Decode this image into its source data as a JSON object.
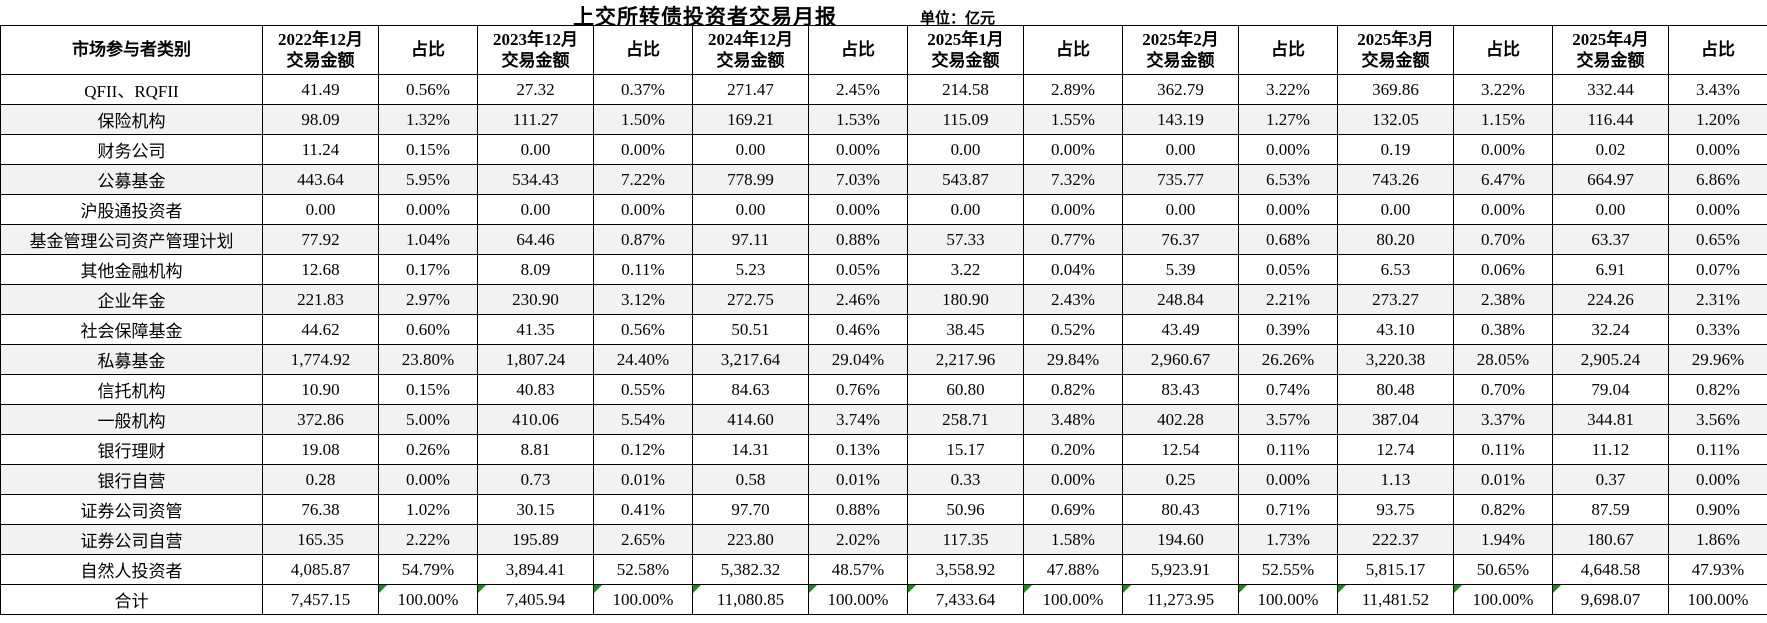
{
  "title": "上交所转债投资者交易月报",
  "unit_label": "单位：亿元",
  "table": {
    "category_header": "市场参与者类别",
    "amount_header_suffix": "交易金额",
    "pct_header": "占比",
    "periods": [
      "2022年12月",
      "2023年12月",
      "2024年12月",
      "2025年1月",
      "2025年2月",
      "2025年3月",
      "2025年4月"
    ],
    "rows": [
      {
        "category": "QFII、RQFII",
        "values": [
          "41.49",
          "0.56%",
          "27.32",
          "0.37%",
          "271.47",
          "2.45%",
          "214.58",
          "2.89%",
          "362.79",
          "3.22%",
          "369.86",
          "3.22%",
          "332.44",
          "3.43%"
        ]
      },
      {
        "category": "保险机构",
        "values": [
          "98.09",
          "1.32%",
          "111.27",
          "1.50%",
          "169.21",
          "1.53%",
          "115.09",
          "1.55%",
          "143.19",
          "1.27%",
          "132.05",
          "1.15%",
          "116.44",
          "1.20%"
        ]
      },
      {
        "category": "财务公司",
        "values": [
          "11.24",
          "0.15%",
          "0.00",
          "0.00%",
          "0.00",
          "0.00%",
          "0.00",
          "0.00%",
          "0.00",
          "0.00%",
          "0.19",
          "0.00%",
          "0.02",
          "0.00%"
        ]
      },
      {
        "category": "公募基金",
        "values": [
          "443.64",
          "5.95%",
          "534.43",
          "7.22%",
          "778.99",
          "7.03%",
          "543.87",
          "7.32%",
          "735.77",
          "6.53%",
          "743.26",
          "6.47%",
          "664.97",
          "6.86%"
        ]
      },
      {
        "category": "沪股通投资者",
        "values": [
          "0.00",
          "0.00%",
          "0.00",
          "0.00%",
          "0.00",
          "0.00%",
          "0.00",
          "0.00%",
          "0.00",
          "0.00%",
          "0.00",
          "0.00%",
          "0.00",
          "0.00%"
        ]
      },
      {
        "category": "基金管理公司资产管理计划",
        "values": [
          "77.92",
          "1.04%",
          "64.46",
          "0.87%",
          "97.11",
          "0.88%",
          "57.33",
          "0.77%",
          "76.37",
          "0.68%",
          "80.20",
          "0.70%",
          "63.37",
          "0.65%"
        ]
      },
      {
        "category": "其他金融机构",
        "values": [
          "12.68",
          "0.17%",
          "8.09",
          "0.11%",
          "5.23",
          "0.05%",
          "3.22",
          "0.04%",
          "5.39",
          "0.05%",
          "6.53",
          "0.06%",
          "6.91",
          "0.07%"
        ]
      },
      {
        "category": "企业年金",
        "values": [
          "221.83",
          "2.97%",
          "230.90",
          "3.12%",
          "272.75",
          "2.46%",
          "180.90",
          "2.43%",
          "248.84",
          "2.21%",
          "273.27",
          "2.38%",
          "224.26",
          "2.31%"
        ]
      },
      {
        "category": "社会保障基金",
        "values": [
          "44.62",
          "0.60%",
          "41.35",
          "0.56%",
          "50.51",
          "0.46%",
          "38.45",
          "0.52%",
          "43.49",
          "0.39%",
          "43.10",
          "0.38%",
          "32.24",
          "0.33%"
        ]
      },
      {
        "category": "私募基金",
        "values": [
          "1,774.92",
          "23.80%",
          "1,807.24",
          "24.40%",
          "3,217.64",
          "29.04%",
          "2,217.96",
          "29.84%",
          "2,960.67",
          "26.26%",
          "3,220.38",
          "28.05%",
          "2,905.24",
          "29.96%"
        ]
      },
      {
        "category": "信托机构",
        "values": [
          "10.90",
          "0.15%",
          "40.83",
          "0.55%",
          "84.63",
          "0.76%",
          "60.80",
          "0.82%",
          "83.43",
          "0.74%",
          "80.48",
          "0.70%",
          "79.04",
          "0.82%"
        ]
      },
      {
        "category": "一般机构",
        "values": [
          "372.86",
          "5.00%",
          "410.06",
          "5.54%",
          "414.60",
          "3.74%",
          "258.71",
          "3.48%",
          "402.28",
          "3.57%",
          "387.04",
          "3.37%",
          "344.81",
          "3.56%"
        ]
      },
      {
        "category": "银行理财",
        "values": [
          "19.08",
          "0.26%",
          "8.81",
          "0.12%",
          "14.31",
          "0.13%",
          "15.17",
          "0.20%",
          "12.54",
          "0.11%",
          "12.74",
          "0.11%",
          "11.12",
          "0.11%"
        ]
      },
      {
        "category": "银行自营",
        "values": [
          "0.28",
          "0.00%",
          "0.73",
          "0.01%",
          "0.58",
          "0.01%",
          "0.33",
          "0.00%",
          "0.25",
          "0.00%",
          "1.13",
          "0.01%",
          "0.37",
          "0.00%"
        ]
      },
      {
        "category": "证券公司资管",
        "values": [
          "76.38",
          "1.02%",
          "30.15",
          "0.41%",
          "97.70",
          "0.88%",
          "50.96",
          "0.69%",
          "80.43",
          "0.71%",
          "93.75",
          "0.82%",
          "87.59",
          "0.90%"
        ]
      },
      {
        "category": "证券公司自营",
        "values": [
          "165.35",
          "2.22%",
          "195.89",
          "2.65%",
          "223.80",
          "2.02%",
          "117.35",
          "1.58%",
          "194.60",
          "1.73%",
          "222.37",
          "1.94%",
          "180.67",
          "1.86%"
        ]
      },
      {
        "category": "自然人投资者",
        "values": [
          "4,085.87",
          "54.79%",
          "3,894.41",
          "52.58%",
          "5,382.32",
          "48.57%",
          "3,558.92",
          "47.88%",
          "5,923.91",
          "52.55%",
          "5,815.17",
          "50.65%",
          "4,648.58",
          "47.93%"
        ]
      },
      {
        "category": "合计",
        "values": [
          "7,457.15",
          "100.00%",
          "7,405.94",
          "100.00%",
          "11,080.85",
          "100.00%",
          "7,433.64",
          "100.00%",
          "11,273.95",
          "100.00%",
          "11,481.52",
          "100.00%",
          "9,698.07",
          "100.00%"
        ],
        "triangles": [
          1,
          2,
          3,
          4,
          5,
          6,
          7,
          8,
          9,
          10,
          11,
          12
        ]
      }
    ]
  }
}
